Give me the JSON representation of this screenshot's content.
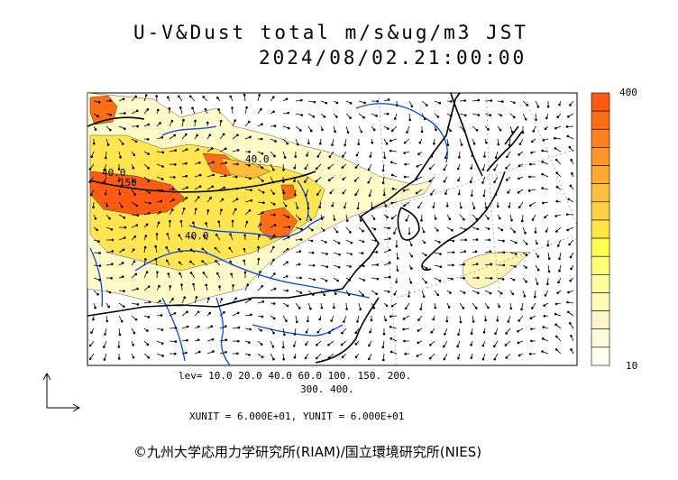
{
  "header": {
    "title_line1": "U-V&Dust total m/s&ug/m3 JST",
    "title_line2": "2024/08/02.21:00:00"
  },
  "legend": {
    "max_label": "400",
    "min_label": "10",
    "colors": [
      "#ff5a14",
      "#ff6e14",
      "#ff821e",
      "#ff9628",
      "#ffaa2d",
      "#ffbe3c",
      "#ffd246",
      "#ffe646",
      "#ffff50",
      "#ffff78",
      "#ffff9b",
      "#fffab4",
      "#fff5c8",
      "#fffadc",
      "#fffff0"
    ]
  },
  "contour_labels": [
    "40.0",
    "150",
    "40.0",
    "40.0"
  ],
  "levels_text": {
    "line1": "lev= 10.0 20.0 40.0 60.0 100. 150. 200.",
    "line2": "300. 400."
  },
  "units_text": "XUNIT = 6.000E+01, YUNIT = 6.000E+01",
  "copyright": "©九州大学応用力学研究所(RIAM)/国立環境研究所(NIES)",
  "colors": {
    "coast": "#000000",
    "river": "#0046ff",
    "dust_low": "#fffac8",
    "dust_mid": "#ffe650",
    "dust_high": "#ff5a14"
  }
}
